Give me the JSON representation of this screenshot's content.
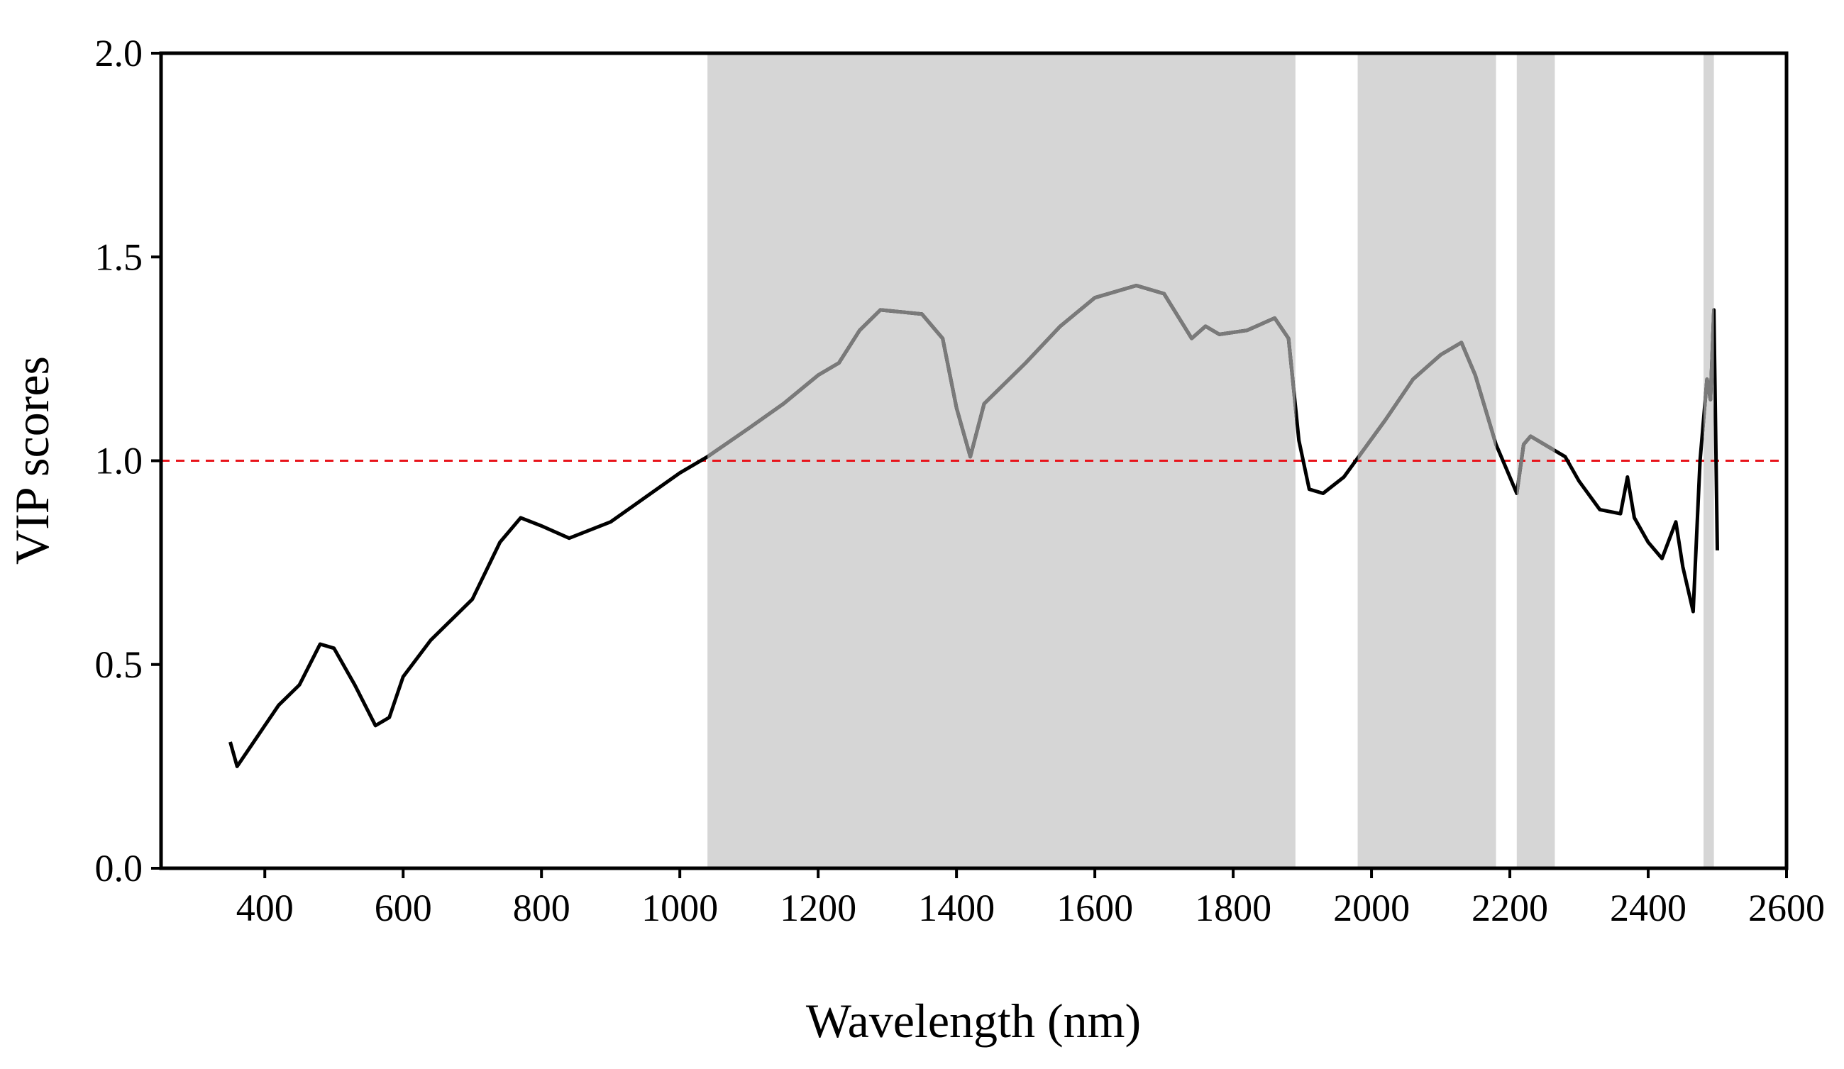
{
  "chart_data": {
    "type": "line",
    "x_label": "Wavelength (nm)",
    "y_label": "VIP scores",
    "xlim": [
      250,
      2600
    ],
    "ylim": [
      0,
      2
    ],
    "xticks": [
      400,
      600,
      800,
      1000,
      1200,
      1400,
      1600,
      1800,
      2000,
      2200,
      2400,
      2600
    ],
    "yticks": [
      {
        "value": 0,
        "label": "0.0"
      },
      {
        "value": 0.5,
        "label": "0.5"
      },
      {
        "value": 1,
        "label": "1.0"
      },
      {
        "value": 1.5,
        "label": "1.5"
      },
      {
        "value": 2,
        "label": "2.0"
      }
    ],
    "threshold": 1,
    "threshold_color": "#e8141b",
    "shaded_regions": [
      [
        1040,
        1890
      ],
      [
        1980,
        2180
      ],
      [
        2210,
        2265
      ],
      [
        2480,
        2495
      ]
    ],
    "shade_color": "#d6d6d6",
    "shaded_line_color": "#7a7a7a",
    "color": "#000000",
    "x": [
      350,
      360,
      380,
      400,
      420,
      450,
      480,
      500,
      530,
      560,
      580,
      600,
      640,
      700,
      740,
      770,
      800,
      840,
      900,
      950,
      1000,
      1040,
      1100,
      1150,
      1200,
      1230,
      1260,
      1290,
      1350,
      1380,
      1400,
      1420,
      1440,
      1500,
      1550,
      1600,
      1660,
      1700,
      1740,
      1760,
      1780,
      1820,
      1860,
      1880,
      1895,
      1910,
      1930,
      1960,
      1990,
      2020,
      2060,
      2100,
      2130,
      2150,
      2180,
      2195,
      2210,
      2220,
      2230,
      2260,
      2280,
      2300,
      2330,
      2360,
      2370,
      2380,
      2400,
      2420,
      2440,
      2450,
      2465,
      2475,
      2485,
      2490,
      2495,
      2500
    ],
    "values": [
      0.31,
      0.25,
      0.3,
      0.35,
      0.4,
      0.45,
      0.55,
      0.54,
      0.45,
      0.35,
      0.37,
      0.47,
      0.56,
      0.66,
      0.8,
      0.86,
      0.84,
      0.81,
      0.85,
      0.91,
      0.97,
      1.01,
      1.08,
      1.14,
      1.21,
      1.24,
      1.32,
      1.37,
      1.36,
      1.3,
      1.13,
      1.01,
      1.14,
      1.24,
      1.33,
      1.4,
      1.43,
      1.41,
      1.3,
      1.33,
      1.31,
      1.32,
      1.35,
      1.3,
      1.05,
      0.93,
      0.92,
      0.96,
      1.03,
      1.1,
      1.2,
      1.26,
      1.29,
      1.21,
      1.04,
      0.98,
      0.92,
      1.04,
      1.06,
      1.03,
      1.01,
      0.95,
      0.88,
      0.87,
      0.96,
      0.86,
      0.8,
      0.76,
      0.85,
      0.74,
      0.63,
      1.0,
      1.2,
      1.15,
      1.37,
      0.78
    ]
  }
}
